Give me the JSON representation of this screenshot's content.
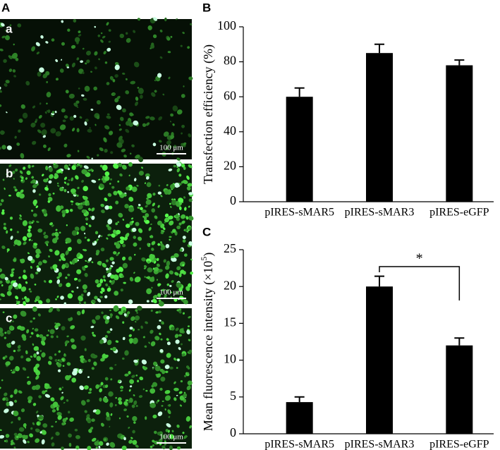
{
  "figure": {
    "panel_label": "A",
    "images": [
      {
        "label": "a",
        "scale_bar": "100 μm"
      },
      {
        "label": "b",
        "scale_bar": "100 μm"
      },
      {
        "label": "c",
        "scale_bar": "100 μm"
      }
    ]
  },
  "chart_data": [
    {
      "type": "bar",
      "panel_label": "B",
      "ylabel": "Transfection efficiency (%)",
      "categories": [
        "pIRES-sMAR5",
        "pIRES-sMAR3",
        "pIRES-eGFP"
      ],
      "values": [
        60,
        85,
        78
      ],
      "errors": [
        5,
        5,
        3
      ],
      "color": "#000000",
      "ylim": [
        0,
        100
      ],
      "yticks": [
        0,
        20,
        40,
        60,
        80,
        100
      ]
    },
    {
      "type": "bar",
      "panel_label": "C",
      "ylabel": "Mean fluorescence intensity (×10",
      "ylabel_sup": "5",
      "ylabel_end": ")",
      "categories": [
        "pIRES-sMAR5",
        "pIRES-sMAR3",
        "pIRES-eGFP"
      ],
      "values": [
        4.3,
        20,
        12
      ],
      "errors": [
        0.7,
        1.4,
        1
      ],
      "color": "#000000",
      "ylim": [
        0,
        25
      ],
      "yticks": [
        0,
        5,
        10,
        15,
        20,
        25
      ],
      "significance": {
        "label": "*",
        "between": [
          "pIRES-sMAR3",
          "pIRES-eGFP"
        ]
      }
    }
  ]
}
